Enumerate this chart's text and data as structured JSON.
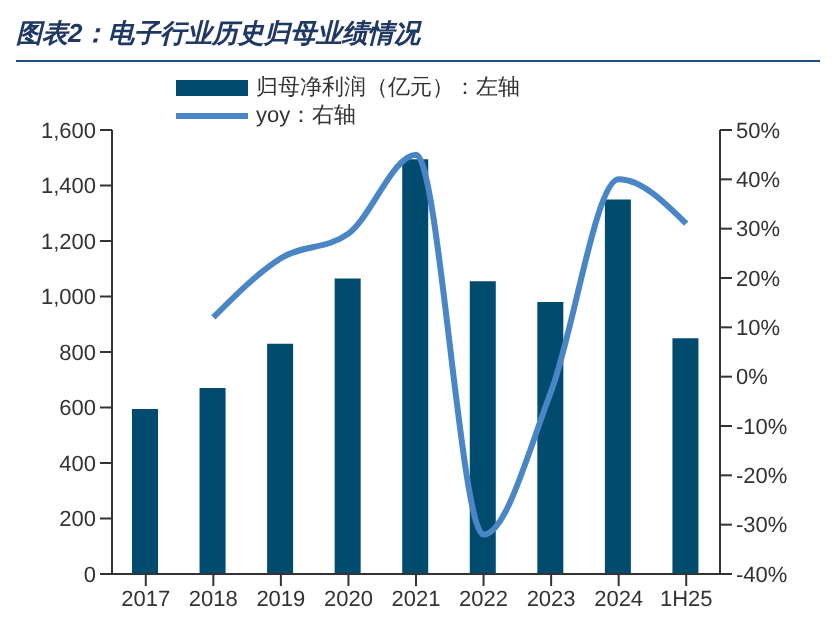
{
  "chart_data": {
    "type": "bar",
    "title": "图表2：电子行业历史归母业绩情况",
    "categories": [
      "2017",
      "2018",
      "2019",
      "2020",
      "2021",
      "2022",
      "2023",
      "2024",
      "1H25"
    ],
    "series": [
      {
        "name": "归母净利润（亿元）：左轴",
        "color": "#004b6e",
        "values": [
          595,
          670,
          830,
          1065,
          1495,
          1055,
          980,
          1350,
          850
        ]
      },
      {
        "name": "yoy：右轴",
        "type": "line",
        "axis": "y2",
        "color": "#4a86c5",
        "values": [
          null,
          12,
          24,
          29,
          45,
          -32,
          -3,
          40,
          31
        ]
      }
    ],
    "ylim": [
      0,
      1600
    ],
    "yticks": [
      0,
      {
        "value": 200,
        "label": "200"
      },
      {
        "value": 400,
        "label": "400"
      },
      {
        "value": 600,
        "label": "600"
      },
      {
        "value": 800,
        "label": "800"
      },
      {
        "value": 1000,
        "label": "1,000"
      },
      {
        "value": 1200,
        "label": "1,200"
      },
      {
        "value": 1400,
        "label": "1,400"
      },
      {
        "value": 1600,
        "label": "1,600"
      }
    ],
    "y2lim": [
      -40,
      50
    ],
    "y2ticks": [
      {
        "value": -40,
        "label": "-40%"
      },
      {
        "value": -30,
        "label": "-30%"
      },
      {
        "value": -20,
        "label": "-20%"
      },
      {
        "value": -10,
        "label": "-10%"
      },
      {
        "value": 0,
        "label": "0%"
      },
      {
        "value": 10,
        "label": "10%"
      },
      {
        "value": 20,
        "label": "20%"
      },
      {
        "value": 30,
        "label": "30%"
      },
      {
        "value": 40,
        "label": "40%"
      },
      {
        "value": 50,
        "label": "50%"
      }
    ],
    "legend": "top",
    "grid": false,
    "marker": "none",
    "line_style": "solid"
  }
}
